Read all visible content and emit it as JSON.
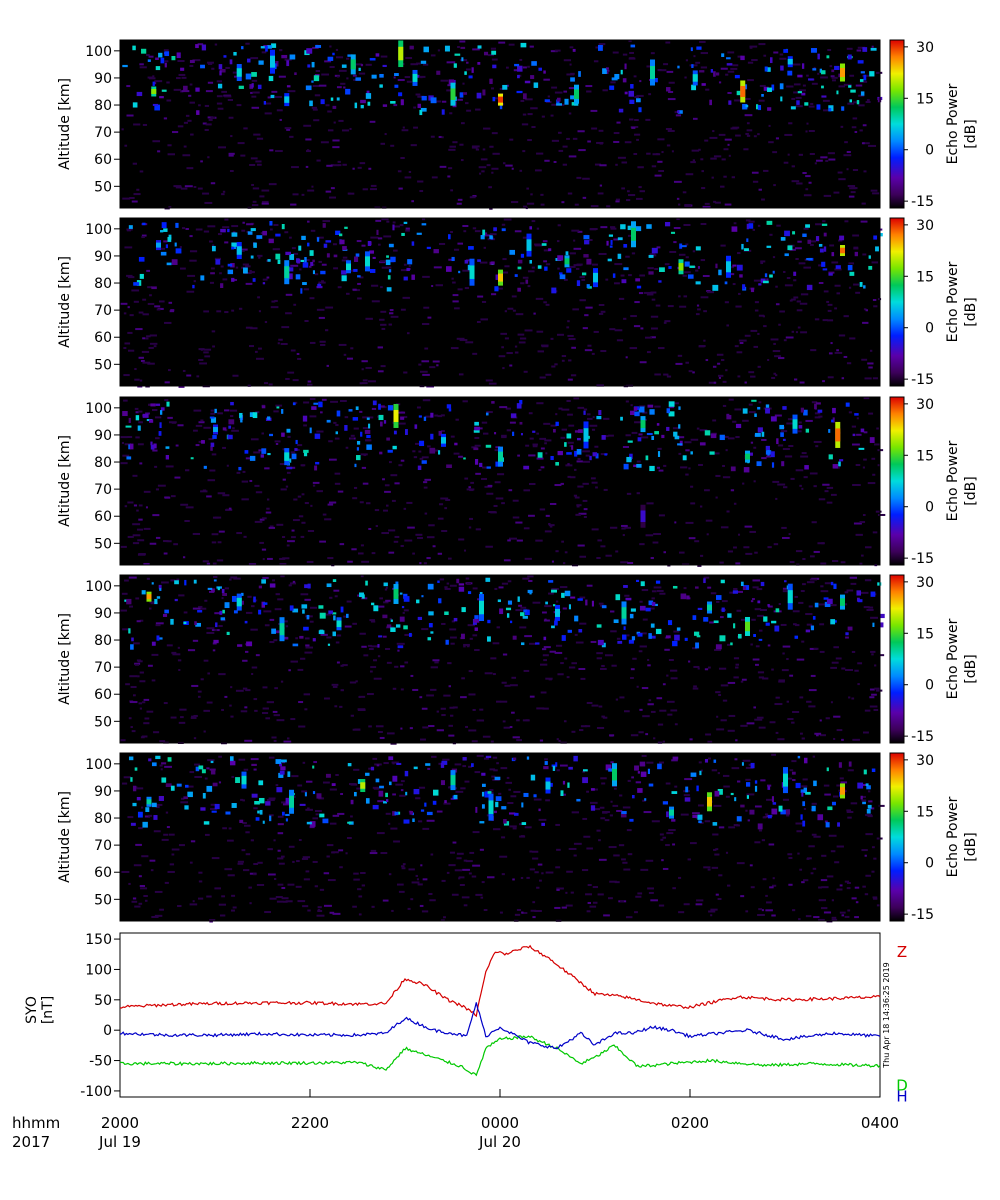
{
  "chart_data": [
    {
      "type": "heatmap",
      "panel": 1,
      "ylabel": "Altitude [km]",
      "ylim": [
        42,
        104
      ],
      "yticks": [
        50,
        60,
        70,
        80,
        90,
        100
      ],
      "xlim": [
        0,
        8
      ],
      "colorbar": {
        "label": "Echo Power [dB]",
        "range": [
          -17,
          32
        ],
        "ticks": [
          -15,
          0,
          15,
          30
        ]
      },
      "echoes": [
        {
          "t": 0.35,
          "alt": 85,
          "dB": 18
        },
        {
          "t": 1.25,
          "alt": 92,
          "dB": 8
        },
        {
          "t": 1.6,
          "alt": 96,
          "dB": 6
        },
        {
          "t": 1.75,
          "alt": 82,
          "dB": 6
        },
        {
          "t": 2.45,
          "alt": 95,
          "dB": 12
        },
        {
          "t": 2.95,
          "alt": 99,
          "dB": 20
        },
        {
          "t": 3.1,
          "alt": 90,
          "dB": 8
        },
        {
          "t": 3.5,
          "alt": 84,
          "dB": 14
        },
        {
          "t": 4.0,
          "alt": 82,
          "dB": 30
        },
        {
          "t": 4.8,
          "alt": 84,
          "dB": 12
        },
        {
          "t": 5.6,
          "alt": 92,
          "dB": 10
        },
        {
          "t": 6.05,
          "alt": 90,
          "dB": 8
        },
        {
          "t": 6.55,
          "alt": 85,
          "dB": 28
        },
        {
          "t": 7.05,
          "alt": 96,
          "dB": 6
        },
        {
          "t": 7.6,
          "alt": 92,
          "dB": 26
        }
      ]
    },
    {
      "type": "heatmap",
      "panel": 2,
      "ylabel": "Altitude [km]",
      "ylim": [
        42,
        104
      ],
      "yticks": [
        50,
        60,
        70,
        80,
        90,
        100
      ],
      "xlim": [
        0,
        8
      ],
      "colorbar": {
        "label": "Echo Power [dB]",
        "range": [
          -17,
          32
        ],
        "ticks": [
          -15,
          0,
          15,
          30
        ]
      },
      "echoes": [
        {
          "t": 0.4,
          "alt": 94,
          "dB": 4
        },
        {
          "t": 1.25,
          "alt": 92,
          "dB": 6
        },
        {
          "t": 1.75,
          "alt": 84,
          "dB": 10
        },
        {
          "t": 2.4,
          "alt": 86,
          "dB": 8
        },
        {
          "t": 2.6,
          "alt": 88,
          "dB": 8
        },
        {
          "t": 3.7,
          "alt": 84,
          "dB": 8
        },
        {
          "t": 4.0,
          "alt": 82,
          "dB": 24
        },
        {
          "t": 4.3,
          "alt": 94,
          "dB": 6
        },
        {
          "t": 4.7,
          "alt": 88,
          "dB": 12
        },
        {
          "t": 5.0,
          "alt": 82,
          "dB": 6
        },
        {
          "t": 5.4,
          "alt": 98,
          "dB": 12
        },
        {
          "t": 5.9,
          "alt": 86,
          "dB": 18
        },
        {
          "t": 6.4,
          "alt": 86,
          "dB": 6
        },
        {
          "t": 7.6,
          "alt": 92,
          "dB": 28
        }
      ]
    },
    {
      "type": "heatmap",
      "panel": 3,
      "ylabel": "Altitude [km]",
      "ylim": [
        42,
        104
      ],
      "yticks": [
        50,
        60,
        70,
        80,
        90,
        100
      ],
      "xlim": [
        0,
        8
      ],
      "colorbar": {
        "label": "Echo Power [dB]",
        "range": [
          -17,
          32
        ],
        "ticks": [
          -15,
          0,
          15,
          30
        ]
      },
      "echoes": [
        {
          "t": 1.0,
          "alt": 92,
          "dB": 4
        },
        {
          "t": 1.75,
          "alt": 82,
          "dB": 8
        },
        {
          "t": 2.9,
          "alt": 97,
          "dB": 22
        },
        {
          "t": 3.4,
          "alt": 88,
          "dB": 6
        },
        {
          "t": 4.0,
          "alt": 82,
          "dB": 10
        },
        {
          "t": 4.9,
          "alt": 90,
          "dB": 6
        },
        {
          "t": 5.5,
          "alt": 94,
          "dB": 12
        },
        {
          "t": 5.5,
          "alt": 60,
          "dB": -6
        },
        {
          "t": 6.6,
          "alt": 82,
          "dB": 12
        },
        {
          "t": 7.1,
          "alt": 94,
          "dB": 8
        },
        {
          "t": 7.55,
          "alt": 90,
          "dB": 28
        }
      ]
    },
    {
      "type": "heatmap",
      "panel": 4,
      "ylabel": "Altitude [km]",
      "ylim": [
        42,
        104
      ],
      "yticks": [
        50,
        60,
        70,
        80,
        90,
        100
      ],
      "xlim": [
        0,
        8
      ],
      "colorbar": {
        "label": "Echo Power [dB]",
        "range": [
          -17,
          32
        ],
        "ticks": [
          -15,
          0,
          15,
          30
        ]
      },
      "echoes": [
        {
          "t": 0.3,
          "alt": 96,
          "dB": 26
        },
        {
          "t": 1.25,
          "alt": 94,
          "dB": 8
        },
        {
          "t": 1.7,
          "alt": 84,
          "dB": 10
        },
        {
          "t": 2.3,
          "alt": 86,
          "dB": 8
        },
        {
          "t": 2.9,
          "alt": 97,
          "dB": 12
        },
        {
          "t": 3.8,
          "alt": 92,
          "dB": 8
        },
        {
          "t": 4.6,
          "alt": 90,
          "dB": 6
        },
        {
          "t": 5.3,
          "alt": 90,
          "dB": 10
        },
        {
          "t": 6.2,
          "alt": 92,
          "dB": 10
        },
        {
          "t": 6.6,
          "alt": 85,
          "dB": 16
        },
        {
          "t": 7.05,
          "alt": 96,
          "dB": 8
        },
        {
          "t": 7.6,
          "alt": 94,
          "dB": 12
        }
      ]
    },
    {
      "type": "heatmap",
      "panel": 5,
      "ylabel": "Altitude [km]",
      "ylim": [
        42,
        104
      ],
      "yticks": [
        50,
        60,
        70,
        80,
        90,
        100
      ],
      "xlim": [
        0,
        8
      ],
      "colorbar": {
        "label": "Echo Power [dB]",
        "range": [
          -17,
          32
        ],
        "ticks": [
          -15,
          0,
          15,
          30
        ]
      },
      "echoes": [
        {
          "t": 0.3,
          "alt": 86,
          "dB": 10
        },
        {
          "t": 1.3,
          "alt": 94,
          "dB": 8
        },
        {
          "t": 1.8,
          "alt": 86,
          "dB": 10
        },
        {
          "t": 2.55,
          "alt": 92,
          "dB": 20
        },
        {
          "t": 3.5,
          "alt": 94,
          "dB": 10
        },
        {
          "t": 3.9,
          "alt": 84,
          "dB": 8
        },
        {
          "t": 4.5,
          "alt": 92,
          "dB": 6
        },
        {
          "t": 5.2,
          "alt": 96,
          "dB": 12
        },
        {
          "t": 5.8,
          "alt": 82,
          "dB": 10
        },
        {
          "t": 6.2,
          "alt": 86,
          "dB": 24
        },
        {
          "t": 7.0,
          "alt": 94,
          "dB": 8
        },
        {
          "t": 7.6,
          "alt": 90,
          "dB": 26
        }
      ]
    },
    {
      "type": "line",
      "panel": 6,
      "ylabel": "SYO\n[nT]",
      "ylim": [
        -110,
        160
      ],
      "yticks": [
        150,
        100,
        50,
        0,
        -50,
        -100
      ],
      "xlim": [
        0,
        8
      ],
      "x_tick_labels": [
        "2000",
        "2200",
        "0000",
        "0200",
        "0400"
      ],
      "x_tick_hours": [
        0,
        2,
        4,
        6,
        8
      ],
      "date_labels": [
        "Jul 19",
        "Jul 20"
      ],
      "date_label_hours": [
        0,
        4
      ],
      "corner_labels": [
        "hhmm",
        "2017"
      ],
      "timestamp": "Thu Apr 18 14:36:25 2019",
      "series": [
        {
          "name": "Z",
          "color": "#d40000",
          "x": [
            0,
            0.5,
            1.0,
            1.5,
            2.0,
            2.5,
            2.8,
            3.0,
            3.2,
            3.45,
            3.6,
            3.75,
            3.85,
            3.95,
            4.05,
            4.3,
            4.5,
            4.75,
            5.0,
            5.3,
            5.6,
            5.8,
            6.0,
            6.5,
            7.0,
            7.5,
            8.0
          ],
          "y": [
            38,
            42,
            44,
            45,
            45,
            43,
            44,
            85,
            75,
            50,
            40,
            25,
            95,
            130,
            125,
            138,
            120,
            90,
            60,
            55,
            45,
            40,
            38,
            55,
            50,
            52,
            55
          ]
        },
        {
          "name": "D",
          "color": "#00c800",
          "x": [
            0,
            0.5,
            1.0,
            1.5,
            2.0,
            2.5,
            2.8,
            3.0,
            3.3,
            3.6,
            3.75,
            3.85,
            4.0,
            4.3,
            4.6,
            4.85,
            5.0,
            5.2,
            5.45,
            5.8,
            6.2,
            6.8,
            7.3,
            7.8,
            8.0
          ],
          "y": [
            -55,
            -55,
            -55,
            -54,
            -54,
            -53,
            -65,
            -30,
            -45,
            -60,
            -75,
            -30,
            -15,
            -10,
            -30,
            -55,
            -45,
            -25,
            -60,
            -55,
            -50,
            -58,
            -55,
            -58,
            -58
          ]
        },
        {
          "name": "H",
          "color": "#0000c8",
          "x": [
            0,
            0.5,
            1.0,
            1.5,
            2.0,
            2.5,
            2.8,
            3.0,
            3.3,
            3.5,
            3.65,
            3.75,
            3.85,
            4.0,
            4.3,
            4.6,
            4.85,
            5.0,
            5.2,
            5.4,
            5.6,
            5.8,
            6.0,
            6.3,
            6.6,
            7.0,
            7.5,
            8.0
          ],
          "y": [
            -5,
            -8,
            -8,
            -6,
            -8,
            -8,
            -5,
            20,
            0,
            -5,
            -10,
            45,
            -10,
            5,
            -20,
            -30,
            -5,
            -25,
            -5,
            -5,
            5,
            0,
            -10,
            -5,
            0,
            -15,
            -5,
            -10
          ]
        }
      ]
    }
  ]
}
